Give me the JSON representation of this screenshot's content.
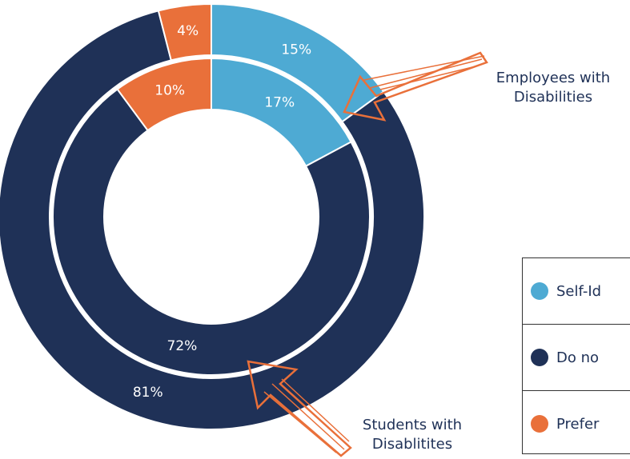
{
  "chart_data": {
    "type": "donut",
    "categories": [
      "Self-Id",
      "Do no",
      "Prefer"
    ],
    "colors": [
      "#4eaad3",
      "#1f3157",
      "#e9703a"
    ],
    "series": [
      {
        "name": "Employees with Disabilities",
        "values": [
          15,
          81,
          4
        ],
        "value_labels": [
          "15%",
          "81%",
          "4%"
        ]
      },
      {
        "name": "Students with Disablitites",
        "values": [
          17,
          72,
          10
        ],
        "value_labels": [
          "17%",
          "72%",
          "10%"
        ]
      }
    ]
  }
}
